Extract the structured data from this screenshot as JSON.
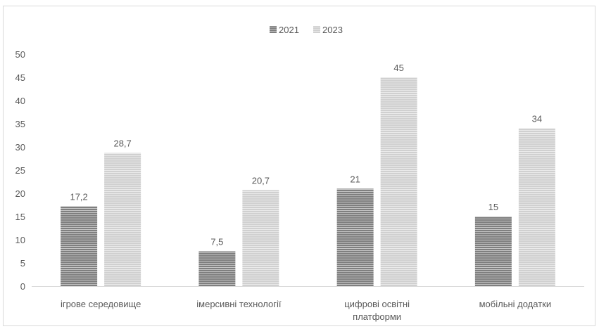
{
  "chart_data": {
    "type": "bar",
    "title": "",
    "xlabel": "",
    "ylabel": "",
    "categories": [
      [
        "ігрове середовище"
      ],
      [
        "імерсивні технології"
      ],
      [
        "цифрові освітні",
        "платформи"
      ],
      [
        "мобільні додатки"
      ]
    ],
    "series": [
      {
        "name": "2021",
        "values": [
          17.2,
          7.5,
          21,
          15
        ],
        "labels": [
          "17,2",
          "7,5",
          "21",
          "15"
        ],
        "color": "#7f7f7f",
        "stripe": "#ffffff"
      },
      {
        "name": "2023",
        "values": [
          28.7,
          20.7,
          45,
          34
        ],
        "labels": [
          "28,7",
          "20,7",
          "45",
          "34"
        ],
        "color": "#d0d0d0",
        "stripe": "#ffffff"
      }
    ],
    "ylim": [
      0,
      50
    ],
    "yticks": [
      "0",
      "5",
      "10",
      "15",
      "20",
      "25",
      "30",
      "35",
      "40",
      "45",
      "50"
    ],
    "grid": false,
    "legend": "top-center"
  }
}
